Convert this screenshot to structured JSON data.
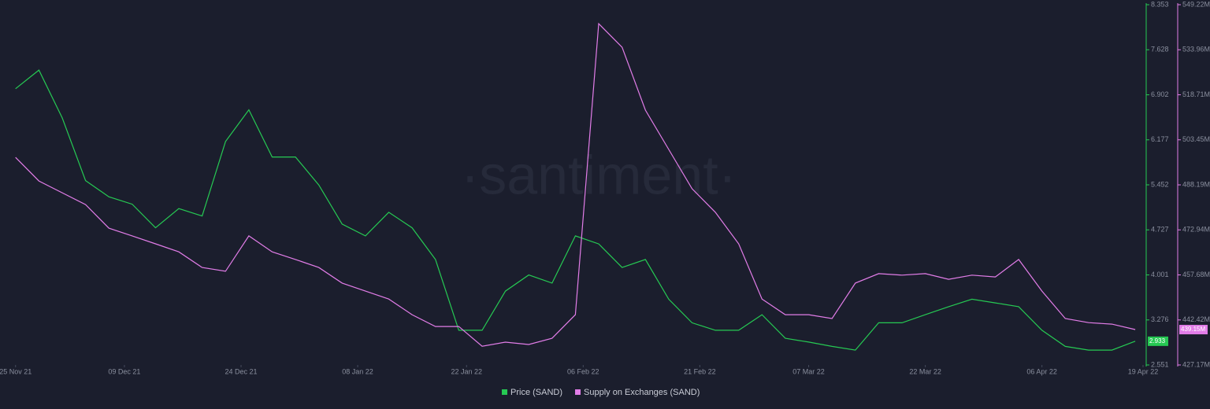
{
  "chart_data": {
    "type": "line",
    "watermark": "·santiment·",
    "x": [
      "2021-11-25",
      "2021-11-28",
      "2021-12-01",
      "2021-12-04",
      "2021-12-07",
      "2021-12-10",
      "2021-12-13",
      "2021-12-16",
      "2021-12-19",
      "2021-12-22",
      "2021-12-25",
      "2021-12-28",
      "2021-12-31",
      "2022-01-03",
      "2022-01-06",
      "2022-01-09",
      "2022-01-12",
      "2022-01-15",
      "2022-01-18",
      "2022-01-21",
      "2022-01-24",
      "2022-01-27",
      "2022-01-30",
      "2022-02-02",
      "2022-02-05",
      "2022-02-08",
      "2022-02-11",
      "2022-02-14",
      "2022-02-17",
      "2022-02-20",
      "2022-02-23",
      "2022-02-26",
      "2022-03-01",
      "2022-03-04",
      "2022-03-07",
      "2022-03-10",
      "2022-03-13",
      "2022-03-16",
      "2022-03-19",
      "2022-03-22",
      "2022-03-25",
      "2022-03-28",
      "2022-03-31",
      "2022-04-03",
      "2022-04-06",
      "2022-04-09",
      "2022-04-12",
      "2022-04-15",
      "2022-04-18"
    ],
    "xlim": [
      "2021-11-23",
      "2022-04-19"
    ],
    "xticks": [
      {
        "value": "2021-11-25",
        "label": "25 Nov 21"
      },
      {
        "value": "2021-12-09",
        "label": "09 Dec 21"
      },
      {
        "value": "2021-12-24",
        "label": "24 Dec 21"
      },
      {
        "value": "2022-01-08",
        "label": "08 Jan 22"
      },
      {
        "value": "2022-01-22",
        "label": "22 Jan 22"
      },
      {
        "value": "2022-02-06",
        "label": "06 Feb 22"
      },
      {
        "value": "2022-02-21",
        "label": "21 Feb 22"
      },
      {
        "value": "2022-03-07",
        "label": "07 Mar 22"
      },
      {
        "value": "2022-03-22",
        "label": "22 Mar 22"
      },
      {
        "value": "2022-04-06",
        "label": "06 Apr 22"
      },
      {
        "value": "2022-04-19",
        "label": "19 Apr 22"
      }
    ],
    "ylim": [
      2.551,
      8.353
    ],
    "yticks": [
      2.551,
      3.276,
      4.001,
      4.727,
      5.452,
      6.177,
      6.902,
      7.628,
      8.353
    ],
    "y2lim": [
      427170000,
      549220000
    ],
    "y2ticks": [
      {
        "value": 427170000,
        "label": "427.17M"
      },
      {
        "value": 442420000,
        "label": "442.42M"
      },
      {
        "value": 457680000,
        "label": "457.68M"
      },
      {
        "value": 472940000,
        "label": "472.94M"
      },
      {
        "value": 488190000,
        "label": "488.19M"
      },
      {
        "value": 503450000,
        "label": "503.45M"
      },
      {
        "value": 518710000,
        "label": "518.71M"
      },
      {
        "value": 533960000,
        "label": "533.96M"
      },
      {
        "value": 549220000,
        "label": "549.22M"
      }
    ],
    "series": [
      {
        "name": "Price (SAND)",
        "color": "#26c953",
        "current": {
          "value": 2.933,
          "label": "2.933"
        },
        "values": [
          7.0,
          7.3,
          6.53,
          5.52,
          5.26,
          5.14,
          4.76,
          5.07,
          4.95,
          6.15,
          6.66,
          5.9,
          5.9,
          5.45,
          4.82,
          4.63,
          5.01,
          4.76,
          4.25,
          3.11,
          3.11,
          3.74,
          4.0,
          3.87,
          4.63,
          4.5,
          4.12,
          4.25,
          3.61,
          3.23,
          3.11,
          3.11,
          3.36,
          2.98,
          2.92,
          2.85,
          2.79,
          3.23,
          3.23,
          3.36,
          3.49,
          3.61,
          3.55,
          3.49,
          3.11,
          2.85,
          2.79,
          2.79,
          2.933
        ]
      },
      {
        "name": "Supply on Exchanges (SAND)",
        "color": "#e27de8",
        "axis": "y2",
        "current": {
          "value": 439150000,
          "label": "439.15M"
        },
        "values": [
          497500000,
          489500000,
          485500000,
          481500000,
          473500000,
          470900000,
          468200000,
          465500000,
          460200000,
          458900000,
          470900000,
          465500000,
          462900000,
          460200000,
          454900000,
          452200000,
          449500000,
          444200000,
          440200000,
          440200000,
          433500000,
          434900000,
          434100000,
          436200000,
          444200000,
          542800000,
          534800000,
          513500000,
          500200000,
          486900000,
          478900000,
          468200000,
          449500000,
          444200000,
          444200000,
          442900000,
          454900000,
          458100000,
          457600000,
          458100000,
          456200000,
          457600000,
          457000000,
          462900000,
          452200000,
          442900000,
          441500000,
          441000000,
          439150000
        ]
      }
    ]
  }
}
